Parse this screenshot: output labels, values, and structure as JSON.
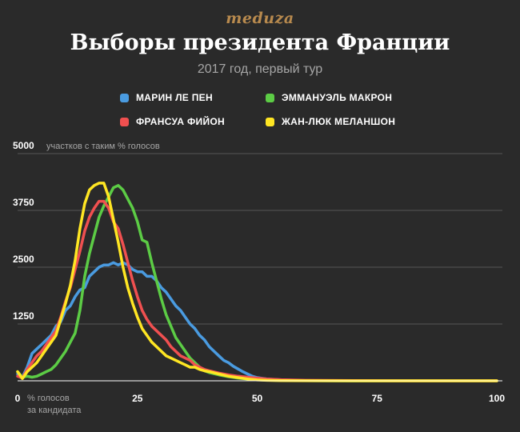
{
  "brand": "meduza",
  "title": "Выборы президента Франции",
  "subtitle": "2017 год, первый тур",
  "chart_data": {
    "type": "line",
    "title": "Выборы президента Франции",
    "subtitle": "2017 год, первый тур",
    "xlabel": [
      "% голосов",
      "за кандидата"
    ],
    "ylabel": "участков с таким % голосов",
    "xlim": [
      0,
      100
    ],
    "ylim": [
      0,
      5000
    ],
    "xticks": [
      0,
      25,
      50,
      75,
      100
    ],
    "yticks": [
      1250,
      2500,
      3750,
      5000
    ],
    "grid": true,
    "legend_position": "top",
    "series": [
      {
        "name": "МАРИН ЛЕ ПЕН",
        "color": "#4a9be0",
        "x": [
          0,
          1,
          2,
          3,
          4,
          5,
          6,
          7,
          8,
          9,
          10,
          11,
          12,
          13,
          14,
          15,
          16,
          17,
          18,
          19,
          20,
          21,
          22,
          23,
          24,
          25,
          26,
          27,
          28,
          29,
          30,
          31,
          32,
          33,
          34,
          35,
          36,
          37,
          38,
          39,
          40,
          41,
          42,
          43,
          44,
          45,
          46,
          47,
          48,
          49,
          50,
          52,
          55,
          58,
          60,
          65,
          70,
          75,
          80,
          90,
          100
        ],
        "y": [
          150,
          80,
          300,
          600,
          700,
          800,
          900,
          1000,
          1200,
          1300,
          1550,
          1650,
          1850,
          2000,
          2050,
          2300,
          2400,
          2500,
          2550,
          2550,
          2600,
          2550,
          2600,
          2550,
          2450,
          2400,
          2400,
          2300,
          2300,
          2200,
          2050,
          1950,
          1800,
          1650,
          1550,
          1400,
          1250,
          1150,
          1000,
          900,
          750,
          650,
          550,
          450,
          400,
          320,
          260,
          200,
          150,
          100,
          70,
          40,
          20,
          10,
          5,
          2,
          0,
          0,
          0,
          0,
          0
        ]
      },
      {
        "name": "ЭММАНУЭЛЬ МАКРОН",
        "color": "#5ccc45",
        "x": [
          0,
          1,
          2,
          3,
          4,
          5,
          6,
          7,
          8,
          9,
          10,
          11,
          12,
          13,
          14,
          15,
          16,
          17,
          18,
          19,
          20,
          21,
          22,
          23,
          24,
          25,
          26,
          27,
          28,
          29,
          30,
          31,
          32,
          33,
          34,
          35,
          36,
          37,
          38,
          39,
          40,
          42,
          44,
          46,
          48,
          50,
          52,
          55,
          60,
          65,
          70,
          80,
          100
        ],
        "y": [
          200,
          80,
          100,
          80,
          100,
          150,
          200,
          250,
          350,
          500,
          650,
          850,
          1050,
          1550,
          2300,
          2800,
          3200,
          3600,
          3850,
          4050,
          4250,
          4300,
          4200,
          4000,
          3800,
          3500,
          3100,
          3050,
          2600,
          2200,
          1800,
          1450,
          1200,
          950,
          800,
          650,
          500,
          400,
          300,
          220,
          180,
          130,
          90,
          60,
          40,
          25,
          15,
          8,
          3,
          1,
          0,
          0,
          0
        ]
      },
      {
        "name": "ФРАНСУА ФИЙОН",
        "color": "#f05050",
        "x": [
          0,
          1,
          2,
          3,
          4,
          5,
          6,
          7,
          8,
          9,
          10,
          11,
          12,
          13,
          14,
          15,
          16,
          17,
          18,
          19,
          20,
          21,
          22,
          23,
          24,
          25,
          26,
          27,
          28,
          29,
          30,
          31,
          32,
          33,
          34,
          35,
          36,
          37,
          38,
          39,
          40,
          42,
          44,
          46,
          48,
          50,
          52,
          55,
          60,
          70,
          80,
          100
        ],
        "y": [
          100,
          60,
          250,
          400,
          550,
          650,
          800,
          950,
          1100,
          1400,
          1750,
          2050,
          2450,
          2850,
          3300,
          3600,
          3800,
          3950,
          3950,
          3800,
          3500,
          3350,
          3000,
          2600,
          2200,
          1850,
          1550,
          1350,
          1200,
          1100,
          1000,
          900,
          750,
          650,
          550,
          500,
          450,
          350,
          300,
          250,
          220,
          170,
          130,
          100,
          80,
          60,
          40,
          25,
          10,
          3,
          0,
          0
        ]
      },
      {
        "name": "ЖАН-ЛЮК МЕЛАНШОН",
        "color": "#ffe623",
        "x": [
          0,
          1,
          2,
          3,
          4,
          5,
          6,
          7,
          8,
          9,
          10,
          11,
          12,
          13,
          14,
          15,
          16,
          17,
          18,
          19,
          20,
          21,
          22,
          23,
          24,
          25,
          26,
          27,
          28,
          29,
          30,
          31,
          32,
          33,
          34,
          35,
          36,
          37,
          38,
          39,
          40,
          42,
          44,
          46,
          48,
          50,
          52,
          55,
          60,
          70,
          100
        ],
        "y": [
          200,
          50,
          200,
          300,
          400,
          550,
          700,
          850,
          1000,
          1350,
          1700,
          2100,
          2650,
          3350,
          3900,
          4200,
          4300,
          4350,
          4350,
          4050,
          3550,
          3050,
          2500,
          2050,
          1700,
          1400,
          1150,
          1000,
          850,
          750,
          650,
          550,
          500,
          450,
          400,
          350,
          300,
          300,
          250,
          220,
          200,
          150,
          100,
          70,
          40,
          20,
          10,
          5,
          2,
          0,
          0
        ]
      }
    ]
  }
}
